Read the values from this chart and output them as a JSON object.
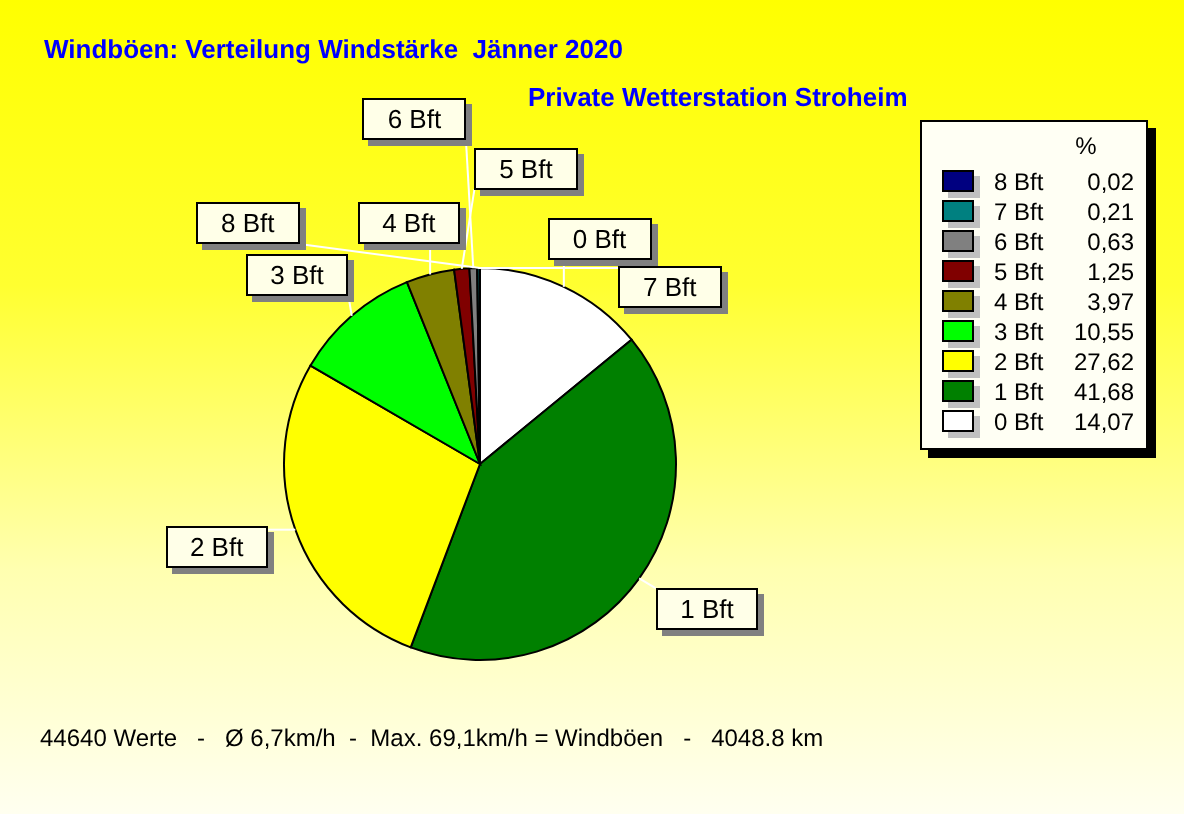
{
  "chart_data": {
    "type": "pie",
    "title": "Windböen: Verteilung Windstärke  Jänner 2020",
    "subtitle": "Private Wetterstation Stroheim",
    "categories": [
      "0 Bft",
      "1 Bft",
      "2 Bft",
      "3 Bft",
      "4 Bft",
      "5 Bft",
      "6 Bft",
      "7 Bft",
      "8 Bft"
    ],
    "values": [
      14.07,
      41.68,
      27.62,
      10.55,
      3.97,
      1.25,
      0.63,
      0.21,
      0.02
    ],
    "colors": [
      "#ffffff",
      "#008000",
      "#ffff00",
      "#00ff00",
      "#808000",
      "#800000",
      "#808080",
      "#008080",
      "#000080"
    ],
    "value_labels": [
      "14,07",
      "41,68",
      "27,62",
      "10,55",
      "3,97",
      "1,25",
      "0,63",
      "0,21",
      "0,02"
    ],
    "legend_title": "%",
    "legend": "top right",
    "annotations": [
      "44640 Werte   -   Ø 6,7km/h  -  Max. 69,1km/h = Windböen   -   4048.8 km"
    ]
  }
}
